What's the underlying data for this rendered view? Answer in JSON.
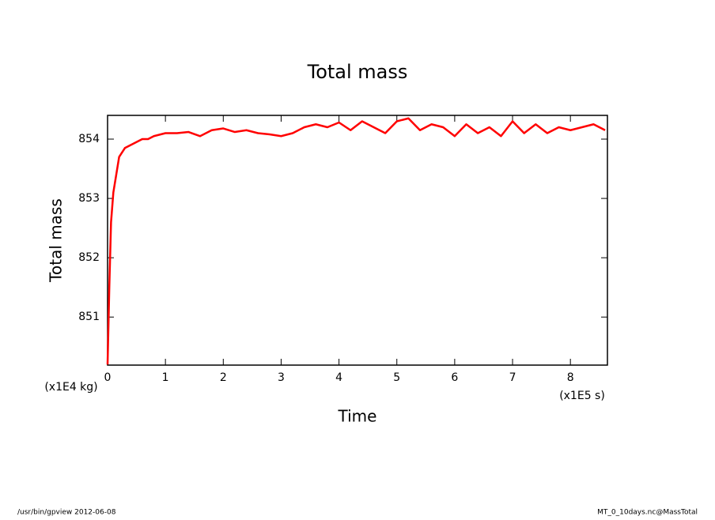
{
  "chart_data": {
    "type": "line",
    "title": "Total mass",
    "x_label": "Time",
    "y_label": "Total mass",
    "x_unit": "(x1E5 s)",
    "y_unit": "(x1E4 kg)",
    "footer_left": "/usr/bin/gpview  2012-06-08",
    "footer_right": "MT_0_10days.nc@MassTotal",
    "x": [
      0,
      0.03,
      0.06,
      0.1,
      0.15,
      0.2,
      0.3,
      0.4,
      0.5,
      0.6,
      0.7,
      0.8,
      1.0,
      1.2,
      1.4,
      1.6,
      1.8,
      2.0,
      2.2,
      2.4,
      2.6,
      2.8,
      3.0,
      3.2,
      3.4,
      3.6,
      3.8,
      4.0,
      4.2,
      4.4,
      4.6,
      4.8,
      5.0,
      5.2,
      5.4,
      5.6,
      5.8,
      6.0,
      6.2,
      6.4,
      6.6,
      6.8,
      7.0,
      7.2,
      7.4,
      7.6,
      7.8,
      8.0,
      8.2,
      8.4,
      8.6
    ],
    "series": [
      {
        "name": "Total mass",
        "color": "#ff0000",
        "values": [
          850.2,
          851.5,
          852.6,
          853.1,
          853.4,
          853.7,
          853.85,
          853.9,
          853.95,
          854.0,
          854.0,
          854.05,
          854.1,
          854.1,
          854.12,
          854.05,
          854.15,
          854.18,
          854.12,
          854.15,
          854.1,
          854.08,
          854.05,
          854.1,
          854.2,
          854.25,
          854.2,
          854.28,
          854.15,
          854.3,
          854.2,
          854.1,
          854.3,
          854.35,
          854.15,
          854.25,
          854.2,
          854.05,
          854.25,
          854.1,
          854.2,
          854.05,
          854.3,
          854.1,
          854.25,
          854.1,
          854.2,
          854.15,
          854.2,
          854.25,
          854.15
        ]
      }
    ],
    "xlim": [
      0,
      8.64
    ],
    "ylim": [
      850.19,
      854.4
    ],
    "xticks": [
      0,
      1,
      2,
      3,
      4,
      5,
      6,
      7,
      8
    ],
    "yticks": [
      851,
      852,
      853,
      854
    ]
  }
}
